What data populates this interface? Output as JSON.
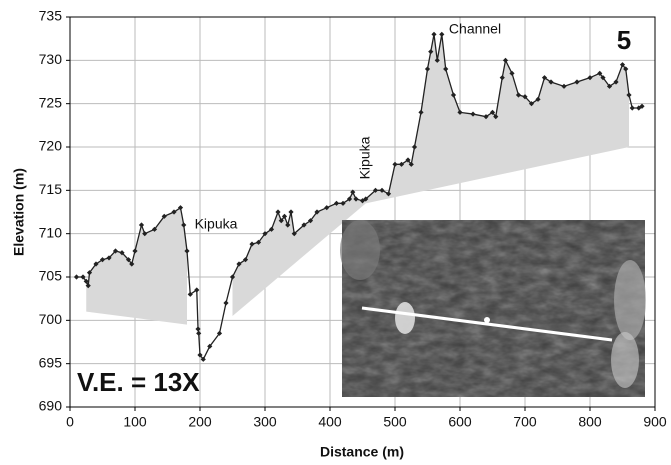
{
  "chart_data": {
    "type": "line",
    "x_label": "Distance (m)",
    "y_label": "Elevation (m)",
    "x": [
      10,
      20,
      25,
      28,
      30,
      40,
      50,
      60,
      70,
      80,
      90,
      95,
      100,
      110,
      115,
      130,
      145,
      160,
      170,
      175,
      180,
      185,
      195,
      197,
      198,
      200,
      205,
      215,
      230,
      240,
      250,
      260,
      270,
      280,
      290,
      300,
      310,
      320,
      325,
      330,
      335,
      340,
      345,
      360,
      370,
      380,
      395,
      410,
      420,
      430,
      435,
      440,
      450,
      455,
      470,
      480,
      490,
      500,
      510,
      520,
      525,
      530,
      540,
      550,
      555,
      560,
      565,
      572,
      578,
      590,
      600,
      620,
      640,
      650,
      655,
      665,
      670,
      680,
      690,
      700,
      710,
      720,
      730,
      740,
      760,
      780,
      800,
      815,
      820,
      830,
      840,
      850,
      855,
      860,
      865,
      875,
      880
    ],
    "values": [
      705,
      705,
      704.5,
      704,
      705.5,
      706.5,
      707,
      707.2,
      708,
      707.8,
      707,
      706.5,
      708,
      711,
      710,
      710.5,
      712,
      712.5,
      713,
      711,
      708,
      703,
      703.5,
      699,
      698.5,
      696,
      695.5,
      697,
      698.5,
      702,
      705,
      706.5,
      707,
      708.8,
      709,
      710,
      710.5,
      712.5,
      711.5,
      712,
      711,
      712.5,
      710,
      711,
      711.5,
      712.5,
      713,
      713.5,
      713.5,
      714,
      714.8,
      714,
      713.8,
      714,
      715,
      715,
      714.6,
      718,
      718,
      718.5,
      718,
      720,
      724,
      729,
      731,
      733,
      730,
      733,
      729,
      726,
      724,
      723.8,
      723.5,
      724,
      723.5,
      728,
      730,
      728.5,
      726,
      725.8,
      725,
      725.5,
      728,
      727.5,
      727,
      727.5,
      728,
      728.5,
      728,
      727,
      727.5,
      729.5,
      729,
      726,
      724.5,
      724.5,
      724.7
    ],
    "color": "#222222",
    "shade_color": "#d9d9d9",
    "shaded": [
      {
        "x": [
          25,
          180
        ],
        "base": [
          701,
          699.5
        ]
      },
      {
        "x": [
          250,
          455
        ],
        "base": [
          700.5,
          713.5
        ]
      },
      {
        "x": [
          455,
          860
        ],
        "base": [
          713.5,
          720
        ]
      }
    ],
    "xlim": [
      0,
      900
    ],
    "ylim": [
      690,
      735
    ],
    "xticks": [
      0,
      100,
      200,
      300,
      400,
      500,
      600,
      700,
      800,
      900
    ],
    "yticks": [
      690,
      695,
      700,
      705,
      710,
      715,
      720,
      725,
      730,
      735
    ],
    "grid": true,
    "annotations": [
      "Kipuka",
      "Kipuka",
      "Channel",
      "5",
      "V.E. = 13X"
    ]
  }
}
